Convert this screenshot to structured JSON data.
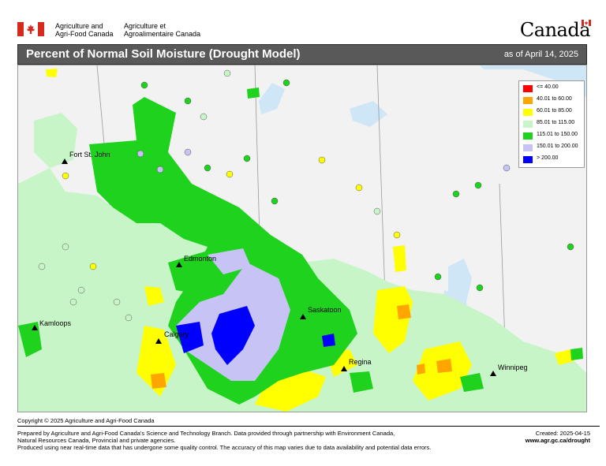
{
  "header": {
    "dept_en_line1": "Agriculture and",
    "dept_en_line2": "Agri-Food Canada",
    "dept_fr_line1": "Agriculture et",
    "dept_fr_line2": "Agroalimentaire Canada",
    "wordmark": "Canada"
  },
  "title": {
    "main": "Percent of Normal Soil Moisture (Drought Model)",
    "as_of": "as of April 14, 2025"
  },
  "legend": {
    "items": [
      {
        "label": "<= 40.00",
        "color": "#ff0000"
      },
      {
        "label": "40.01  to  60.00",
        "color": "#ffa500"
      },
      {
        "label": "60.01  to  85.00",
        "color": "#ffff00"
      },
      {
        "label": "85.01  to  115.00",
        "color": "#c8f5c8"
      },
      {
        "label": "115.01  to  150.00",
        "color": "#1ed21e"
      },
      {
        "label": "150.01  to  200.00",
        "color": "#c8c3f5"
      },
      {
        "label": "> 200.00",
        "color": "#0000ff"
      }
    ]
  },
  "cities": {
    "fort_st_john": "Fort St. John",
    "edmonton": "Edmonton",
    "kamloops": "Kamloops",
    "calgary": "Calgary",
    "saskatoon": "Saskatoon",
    "regina": "Regina",
    "winnipeg": "Winnipeg"
  },
  "footer": {
    "copyright": "Copyright © 2025 Agriculture and Agri-Food Canada",
    "line1": "Prepared by Agriculture and Agri-Food Canada's Science and Technology Branch. Data provided through partnership with Environment Canada,",
    "line2": "Natural Resources Canada, Provincial and private agencies.",
    "line3": "Produced using near real-time data that has undergone some quality control. The accuracy of this map varies due to data availability and potential data errors.",
    "created": "Created:  2025-04-15",
    "url": "www.agr.gc.ca/drought"
  },
  "colors": {
    "title_bar": "#595959",
    "water": "#cfe6f7",
    "land": "#f2f2f2"
  }
}
